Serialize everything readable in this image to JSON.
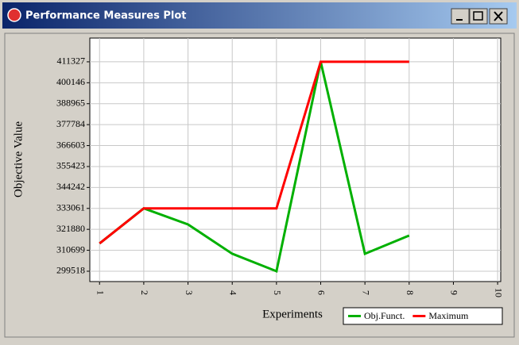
{
  "window": {
    "title": "Performance Measures Plot"
  },
  "chart_data": {
    "type": "line",
    "xlabel": "Experiments",
    "ylabel": "Objective Value",
    "x": [
      1,
      2,
      3,
      4,
      5,
      6,
      7,
      8
    ],
    "series": [
      {
        "name": "Obj.Funct.",
        "color": "#00b000",
        "values": [
          314345,
          333061,
          324509,
          308840,
          299518,
          411327,
          308840,
          318580
        ]
      },
      {
        "name": "Maximum",
        "color": "#ff0000",
        "values": [
          314345,
          333061,
          333061,
          333061,
          333061,
          411327,
          411327,
          411327
        ]
      }
    ],
    "xlim": [
      0.78,
      10.07
    ],
    "xticks": [
      1,
      2,
      3,
      4,
      5,
      6,
      7,
      8,
      9,
      10
    ],
    "ylim": [
      294000,
      424000
    ],
    "yticks": [
      299518,
      310699,
      321880,
      333061,
      344242,
      355423,
      366603,
      377784,
      388965,
      400146,
      411327
    ],
    "grid": true,
    "legend": "lower right"
  }
}
